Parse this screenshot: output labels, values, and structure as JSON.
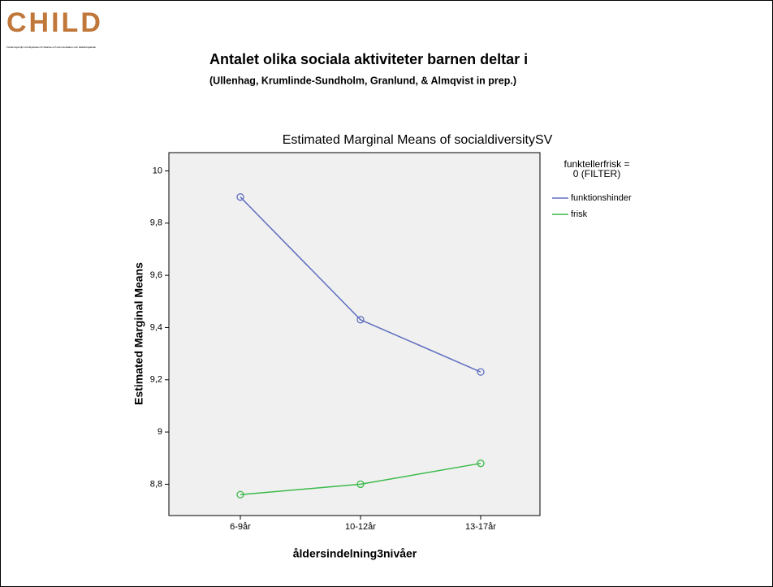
{
  "logo": {
    "name": "CHILD",
    "caption": "Forskningsmiljö vid Högskolan för lärande och kommunikation och Hälsohögskolan"
  },
  "heading": "Antalet olika sociala aktiviteter barnen deltar i",
  "subheading": "(Ullenhag, Krumlinde-Sundholm, Granlund, & Almqvist in prep.)",
  "chart_data": {
    "type": "line",
    "title": "Estimated Marginal Means of socialdiversitySV",
    "x_label": "åldersindelning3nivåer",
    "y_label": "Estimated Marginal Means",
    "legend_title": [
      "funktellerfrisk =",
      "0 (FILTER)"
    ],
    "categories": [
      "6-9år",
      "10-12år",
      "13-17år"
    ],
    "series": [
      {
        "name": "funktionshinder",
        "color": "#5f6fc0",
        "values": [
          9.9,
          9.43,
          9.23
        ]
      },
      {
        "name": "frisk",
        "color": "#3cba4a",
        "values": [
          8.76,
          8.8,
          8.88
        ]
      }
    ],
    "ylim": [
      8.68,
      10.07
    ],
    "yticks": [
      {
        "value": 8.8,
        "label": "8,8"
      },
      9,
      {
        "value": 9.2,
        "label": "9,2"
      },
      {
        "value": 9.4,
        "label": "9,4"
      },
      {
        "value": 9.6,
        "label": "9,6"
      },
      {
        "value": 9.8,
        "label": "9,8"
      },
      10
    ],
    "legend": "right",
    "background": "#f0f0f0"
  }
}
